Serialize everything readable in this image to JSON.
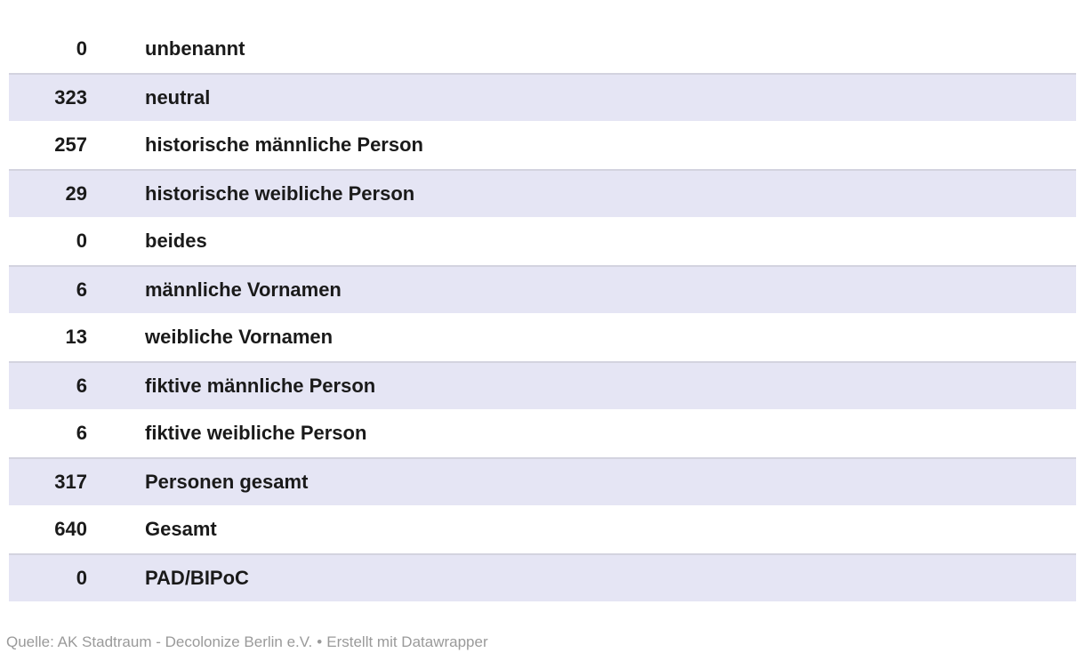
{
  "chart_data": {
    "type": "table",
    "categories": [
      "unbenannt",
      "neutral",
      "historische männliche Person",
      "historische weibliche Person",
      "beides",
      "männliche Vornamen",
      "weibliche Vornamen",
      "fiktive männliche Person",
      "fiktive weibliche Person",
      "Personen gesamt",
      "Gesamt",
      "PAD/BIPoC"
    ],
    "values": [
      0,
      323,
      257,
      29,
      0,
      6,
      13,
      6,
      6,
      317,
      640,
      0
    ],
    "layout": {
      "striped": true,
      "stripe_rows": "even",
      "value_column_align": "right",
      "grid": "off",
      "header": "none"
    }
  },
  "footer": {
    "source": "Quelle: AK Stadtraum - Decolonize Berlin e.V.",
    "separator": "•",
    "attribution": "Erstellt mit Datawrapper"
  },
  "colors": {
    "background": "#ffffff",
    "stripe": "#e5e5f4",
    "stripe_border": "#d3d3df",
    "row_text": "#1a1a1a",
    "footer_text": "#9a9a9a"
  }
}
